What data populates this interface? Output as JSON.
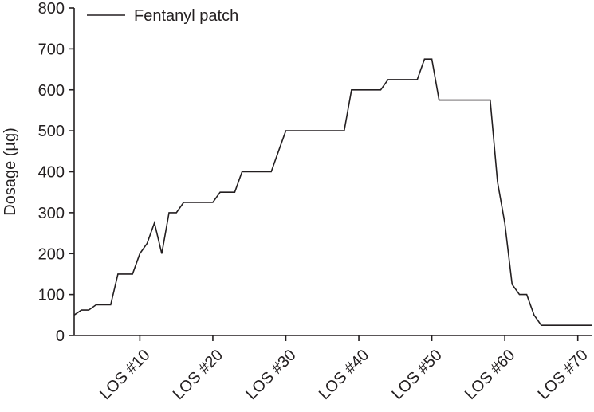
{
  "chart_data": {
    "type": "line",
    "title": "",
    "xlabel": "",
    "ylabel": "Dosage (µg)",
    "ylim": [
      0,
      800
    ],
    "xlim": [
      1,
      72
    ],
    "y_ticks": [
      0,
      100,
      200,
      300,
      400,
      500,
      600,
      700,
      800
    ],
    "x_ticks": [
      10,
      20,
      30,
      40,
      50,
      60,
      70
    ],
    "x_tick_labels": [
      "LOS #10",
      "LOS #20",
      "LOS #30",
      "LOS #40",
      "LOS #50",
      "LOS #60",
      "LOS #70"
    ],
    "grid": false,
    "legend": {
      "position": "top-left",
      "entries": [
        "Fentanyl patch"
      ]
    },
    "line_color": "#231f20",
    "series": [
      {
        "name": "Fentanyl patch",
        "points": [
          [
            1,
            50
          ],
          [
            2,
            62
          ],
          [
            3,
            62
          ],
          [
            4,
            75
          ],
          [
            5,
            75
          ],
          [
            6,
            75
          ],
          [
            7,
            150
          ],
          [
            8,
            150
          ],
          [
            9,
            150
          ],
          [
            10,
            200
          ],
          [
            11,
            225
          ],
          [
            12,
            275
          ],
          [
            13,
            200
          ],
          [
            14,
            300
          ],
          [
            15,
            300
          ],
          [
            16,
            325
          ],
          [
            17,
            325
          ],
          [
            18,
            325
          ],
          [
            19,
            325
          ],
          [
            20,
            325
          ],
          [
            21,
            350
          ],
          [
            22,
            350
          ],
          [
            23,
            350
          ],
          [
            24,
            400
          ],
          [
            25,
            400
          ],
          [
            26,
            400
          ],
          [
            27,
            400
          ],
          [
            28,
            400
          ],
          [
            29,
            450
          ],
          [
            30,
            500
          ],
          [
            31,
            500
          ],
          [
            32,
            500
          ],
          [
            33,
            500
          ],
          [
            34,
            500
          ],
          [
            35,
            500
          ],
          [
            36,
            500
          ],
          [
            37,
            500
          ],
          [
            38,
            500
          ],
          [
            39,
            600
          ],
          [
            40,
            600
          ],
          [
            41,
            600
          ],
          [
            42,
            600
          ],
          [
            43,
            600
          ],
          [
            44,
            625
          ],
          [
            45,
            625
          ],
          [
            46,
            625
          ],
          [
            47,
            625
          ],
          [
            48,
            625
          ],
          [
            49,
            675
          ],
          [
            50,
            675
          ],
          [
            51,
            575
          ],
          [
            52,
            575
          ],
          [
            53,
            575
          ],
          [
            54,
            575
          ],
          [
            55,
            575
          ],
          [
            56,
            575
          ],
          [
            57,
            575
          ],
          [
            58,
            575
          ],
          [
            59,
            375
          ],
          [
            60,
            275
          ],
          [
            61,
            125
          ],
          [
            62,
            100
          ],
          [
            63,
            100
          ],
          [
            64,
            50
          ],
          [
            65,
            25
          ],
          [
            66,
            25
          ],
          [
            67,
            25
          ],
          [
            68,
            25
          ],
          [
            69,
            25
          ],
          [
            70,
            25
          ],
          [
            71,
            25
          ],
          [
            72,
            25
          ]
        ]
      }
    ]
  }
}
